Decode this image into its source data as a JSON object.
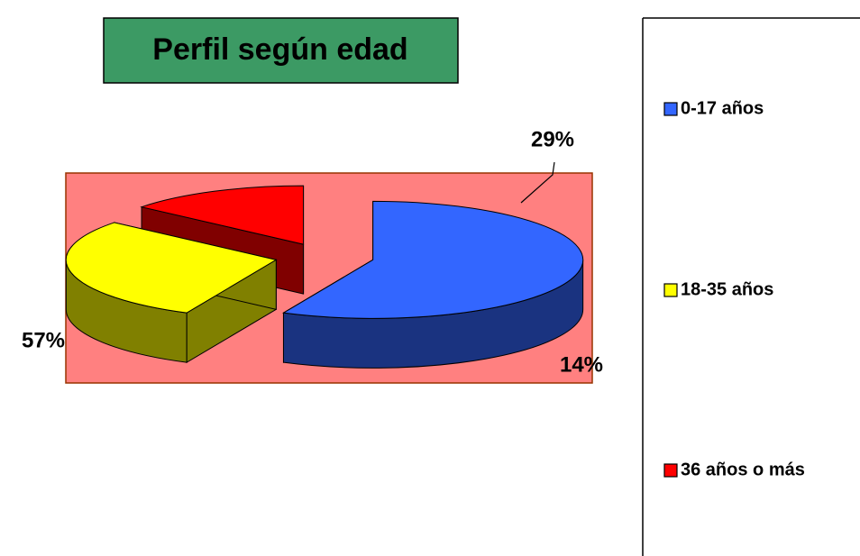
{
  "chart_data": {
    "type": "pie",
    "title": "Perfil según edad",
    "categories": [
      "0-17 años",
      "18-35 años",
      "36 años o más"
    ],
    "values": [
      57,
      29,
      14
    ],
    "value_labels": [
      "57%",
      "29%",
      "14%"
    ],
    "colors": [
      "#3366ff",
      "#ffff00",
      "#ff0000"
    ],
    "legend": "right"
  }
}
